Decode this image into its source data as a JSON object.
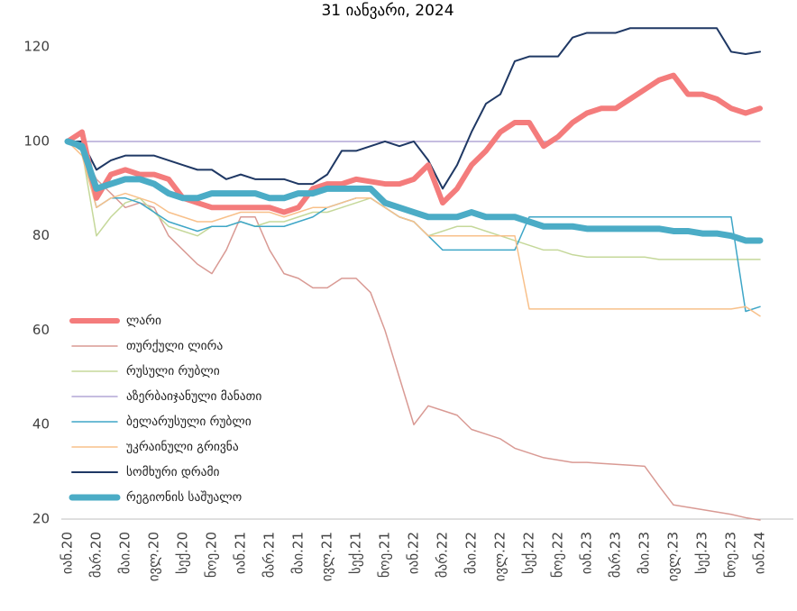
{
  "chart_data": {
    "type": "line",
    "title": "31 იანვარი, 2024",
    "categories": [
      "იან.20",
      null,
      "მარ.20",
      null,
      "მაი.20",
      null,
      "ივლ.20",
      null,
      "სექ.20",
      null,
      "ნოე.20",
      null,
      "იან.21",
      null,
      "მარ.21",
      null,
      "მაი.21",
      null,
      "ივლ.21",
      null,
      "სექ.21",
      null,
      "ნოე.21",
      null,
      "იან.22",
      null,
      "მარ.22",
      null,
      "მაი.22",
      null,
      "ივლ.22",
      null,
      "სექ.22",
      null,
      "ნოე.22",
      null,
      "იან.23",
      null,
      "მარ.23",
      null,
      "მაი.23",
      null,
      "ივლ.23",
      null,
      "სექ.23",
      null,
      "ნოე.23",
      null,
      "იან.24"
    ],
    "ylim": [
      20,
      125
    ],
    "yticks": [
      20,
      40,
      60,
      80,
      100,
      120
    ],
    "grid": false,
    "legend": "left",
    "series": [
      {
        "name": "ლარი",
        "color": "#f47c7c",
        "width": 6,
        "values": [
          100,
          102,
          88,
          93,
          94,
          93,
          93,
          92,
          88,
          87,
          86,
          86,
          86,
          86,
          86,
          85,
          86,
          90,
          91,
          91,
          92,
          91.5,
          91,
          91,
          92,
          95,
          87,
          90,
          95,
          98,
          102,
          104,
          104,
          99,
          101,
          104,
          106,
          107,
          107,
          109,
          111,
          113,
          114,
          110,
          110,
          109,
          107,
          106,
          107
        ]
      },
      {
        "name": "თურქული ლირა",
        "color": "#d99a94",
        "width": 1.5,
        "values": [
          100,
          98,
          92,
          89,
          86,
          87,
          86,
          80,
          77,
          74,
          72,
          77,
          84,
          84,
          77,
          72,
          71,
          69,
          69,
          71,
          71,
          68,
          60,
          50,
          40,
          44,
          43,
          42,
          39,
          38,
          37,
          35,
          34,
          33,
          32.5,
          32,
          32,
          31.8,
          31.6,
          31.4,
          31.2,
          27,
          23,
          22.5,
          22,
          21.5,
          21,
          20.3,
          19.8
        ]
      },
      {
        "name": "რუსული რუბლი",
        "color": "#c5d89a",
        "width": 1.5,
        "values": [
          100,
          98,
          80,
          84,
          87,
          88,
          85,
          82,
          81,
          80,
          82,
          82,
          83,
          82,
          83,
          83,
          84,
          85,
          85,
          86,
          87,
          88,
          86,
          84,
          83,
          80,
          81,
          82,
          82,
          81,
          80,
          79,
          78,
          77,
          77,
          76,
          75.5,
          75.5,
          75.5,
          75.5,
          75.5,
          75,
          75,
          75,
          75,
          75,
          75,
          75,
          75
        ]
      },
      {
        "name": "აზერბაიჯანული მანათი",
        "color": "#b4a7d6",
        "width": 1.5,
        "values": [
          100,
          100,
          100,
          100,
          100,
          100,
          100,
          100,
          100,
          100,
          100,
          100,
          100,
          100,
          100,
          100,
          100,
          100,
          100,
          100,
          100,
          100,
          100,
          100,
          100,
          100,
          100,
          100,
          100,
          100,
          100,
          100,
          100,
          100,
          100,
          100,
          100,
          100,
          100,
          100,
          100,
          100,
          100,
          100,
          100,
          100,
          100,
          100,
          100
        ]
      },
      {
        "name": "ბელარუსული რუბლი",
        "color": "#3ea6c7",
        "width": 1.5,
        "values": [
          100,
          98,
          86,
          88,
          88,
          87,
          85,
          83,
          82,
          81,
          82,
          82,
          83,
          82,
          82,
          82,
          83,
          84,
          86,
          87,
          88,
          88,
          86,
          84,
          83,
          80,
          77,
          77,
          77,
          77,
          77,
          77,
          84,
          84,
          84,
          84,
          84,
          84,
          84,
          84,
          84,
          84,
          84,
          84,
          84,
          84,
          84,
          64,
          65
        ]
      },
      {
        "name": "უკრაინული გრივნა",
        "color": "#f8c08a",
        "width": 1.5,
        "values": [
          100,
          97,
          86,
          88,
          89,
          88,
          87,
          85,
          84,
          83,
          83,
          84,
          85,
          85,
          85,
          84,
          85,
          86,
          86,
          87,
          88,
          88,
          86,
          84,
          83,
          80,
          80,
          80,
          80,
          80,
          80,
          80,
          64.5,
          64.5,
          64.5,
          64.5,
          64.5,
          64.5,
          64.5,
          64.5,
          64.5,
          64.5,
          64.5,
          64.5,
          64.5,
          64.5,
          64.5,
          65,
          63
        ]
      },
      {
        "name": "სომხური დრამი",
        "color": "#1f3864",
        "width": 2,
        "values": [
          100,
          100,
          94,
          96,
          97,
          97,
          97,
          96,
          95,
          94,
          94,
          92,
          93,
          92,
          92,
          92,
          91,
          91,
          93,
          98,
          98,
          99,
          100,
          99,
          100,
          96,
          90,
          95,
          102,
          108,
          110,
          117,
          118,
          118,
          118,
          122,
          123,
          123,
          123,
          124,
          124,
          124,
          124,
          124,
          124,
          124,
          119,
          118.5,
          119
        ]
      },
      {
        "name": "რეგიონის საშუალო",
        "color": "#4bacc6",
        "width": 7,
        "values": [
          100,
          99,
          90,
          91,
          92,
          92,
          91,
          89,
          88,
          88,
          89,
          89,
          89,
          89,
          88,
          88,
          89,
          89,
          90,
          90,
          90,
          90,
          87,
          86,
          85,
          84,
          84,
          84,
          85,
          84,
          84,
          84,
          83,
          82,
          82,
          82,
          81.5,
          81.5,
          81.5,
          81.5,
          81.5,
          81.5,
          81,
          81,
          80.5,
          80.5,
          80,
          79,
          79
        ]
      }
    ]
  }
}
